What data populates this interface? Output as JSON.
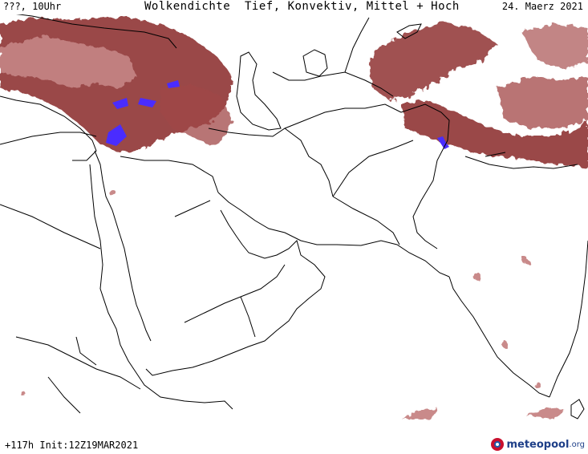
{
  "header": {
    "location": "???, 10Uhr",
    "title": "Wolkendichte  Tief, Konvektiv, Mittel + Hoch",
    "date": "24. Maerz 2021"
  },
  "footer": {
    "run_info": "+117h Init:12Z19MAR2021"
  },
  "logo": {
    "name": "meteopool",
    "tld": ".org"
  },
  "colors": {
    "cloud_dense": "#8f3434",
    "cloud_light": "#c98a8a",
    "convective": "#4a2cff",
    "borders": "#000000"
  }
}
